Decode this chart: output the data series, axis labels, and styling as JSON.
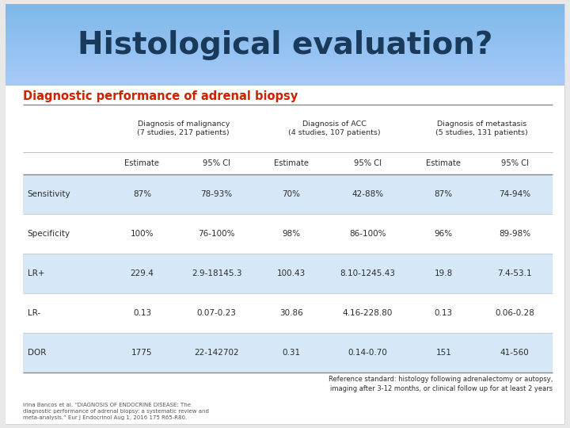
{
  "title": "Histological evaluation?",
  "subtitle": "Diagnostic performance of adrenal biopsy",
  "title_bg_color_top": "#7fd4f5",
  "title_bg_color_bottom": "#2aa8e0",
  "title_text_color": "#1a3a5c",
  "subtitle_color": "#cc2200",
  "bg_color": "#e8e8e8",
  "content_bg_color": "#f5f5f5",
  "col_headers_1": [
    "Diagnosis of malignancy\n(7 studies, 217 patients)",
    "Diagnosis of ACC\n(4 studies, 107 patients)",
    "Diagnosis of metastasis\n(5 studies, 131 patients)"
  ],
  "col_headers_2": [
    "Estimate",
    "95% CI",
    "Estimate",
    "95% CI",
    "Estimate",
    "95% CI"
  ],
  "row_labels": [
    "Sensitivity",
    "Specificity",
    "LR+",
    "LR-",
    "DOR"
  ],
  "table_data": [
    [
      "87%",
      "78-93%",
      "70%",
      "42-88%",
      "87%",
      "74-94%"
    ],
    [
      "100%",
      "76-100%",
      "98%",
      "86-100%",
      "96%",
      "89-98%"
    ],
    [
      "229.4",
      "2.9-18145.3",
      "100.43",
      "8.10-1245.43",
      "19.8",
      "7.4-53.1"
    ],
    [
      "0.13",
      "0.07-0.23",
      "30.86",
      "4.16-228.80",
      "0.13",
      "0.06-0.28"
    ],
    [
      "1775",
      "22-142702",
      "0.31",
      "0.14-0.70",
      "151",
      "41-560"
    ]
  ],
  "shaded_rows": [
    0,
    2,
    4
  ],
  "row_shade_color": "#d6e8f7",
  "reference_text": "Reference standard: histology following adrenalectomy or autopsy,\nimaging after 3-12 months, or clinical follow up for at least 2 years",
  "footnote_text": "Irina Bancos et al. “DIAGNOSIS OF ENDOCRINE DISEASE: The\ndiagnostic performance of adrenal biopsy: a systematic review and\nmeta-analysis.” Eur J Endocrinol Aug 1, 2016 175 R65-R80.",
  "dark_text_color": "#2c2c2c",
  "line_color_heavy": "#888888",
  "line_color_light": "#bbbbbb"
}
